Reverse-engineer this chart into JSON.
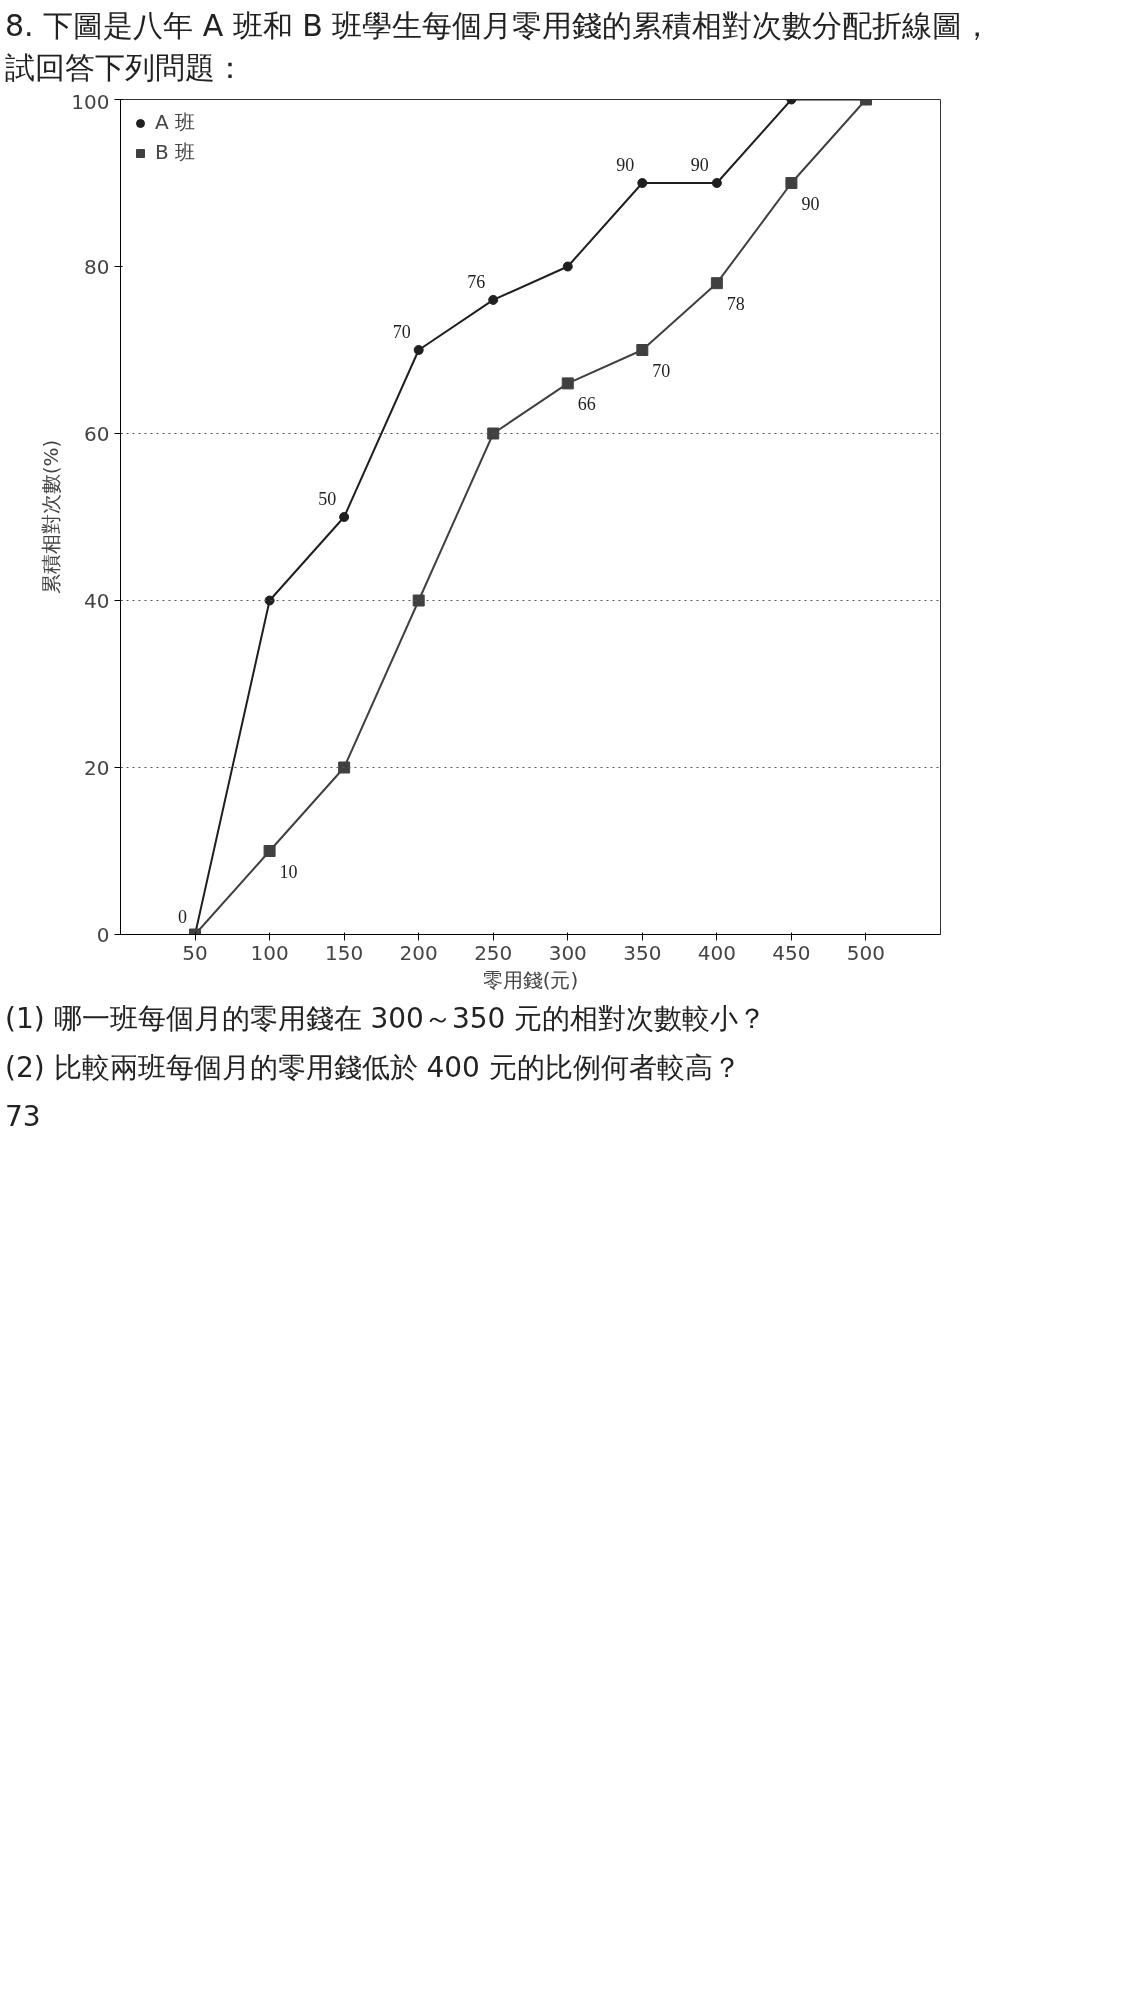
{
  "chart_data": {
    "type": "line",
    "title": "8. 下圖是八年 A 班和 B 班學生每個月零用錢的累積相對次數分配折線圖，試回答下列問題：",
    "xlabel": "零用錢(元)",
    "ylabel": "累積相對次數(%)",
    "x": [
      50,
      100,
      150,
      200,
      250,
      300,
      350,
      400,
      450,
      500
    ],
    "series": [
      {
        "name": "A 班",
        "color": "#1f1f1f",
        "marker": "circle",
        "values": [
          0,
          40,
          50,
          70,
          76,
          80,
          90,
          90,
          100,
          100
        ],
        "value_labels": [
          "0",
          null,
          "50",
          "70",
          "76",
          null,
          "90",
          "90",
          null,
          null
        ]
      },
      {
        "name": "B 班",
        "color": "#404040",
        "marker": "square",
        "values": [
          0,
          10,
          20,
          40,
          60,
          66,
          70,
          78,
          90,
          100
        ],
        "value_labels": [
          null,
          "10",
          null,
          null,
          null,
          "66",
          "70",
          "78",
          "90",
          null
        ]
      }
    ],
    "xlim": [
      0,
      550
    ],
    "xticks": [
      50,
      100,
      150,
      200,
      250,
      300,
      350,
      400,
      450,
      500
    ],
    "ylim": [
      0,
      100
    ],
    "yticks": [
      0,
      20,
      40,
      60,
      80,
      100
    ],
    "ref_lines": [
      {
        "axis": "y",
        "value": 20,
        "line_style": "dotted"
      },
      {
        "axis": "y",
        "value": 40,
        "line_style": "dotted"
      },
      {
        "axis": "y",
        "value": 60,
        "line_style": "dotted"
      }
    ],
    "legend": "top left",
    "grid": false,
    "annotations": [
      "(1) 哪一班每個月的零用錢在 300～350 元的相對次數較小？",
      "(2) 比較兩班每個月的零用錢低於 400 元的比例何者較高？",
      "73"
    ]
  }
}
